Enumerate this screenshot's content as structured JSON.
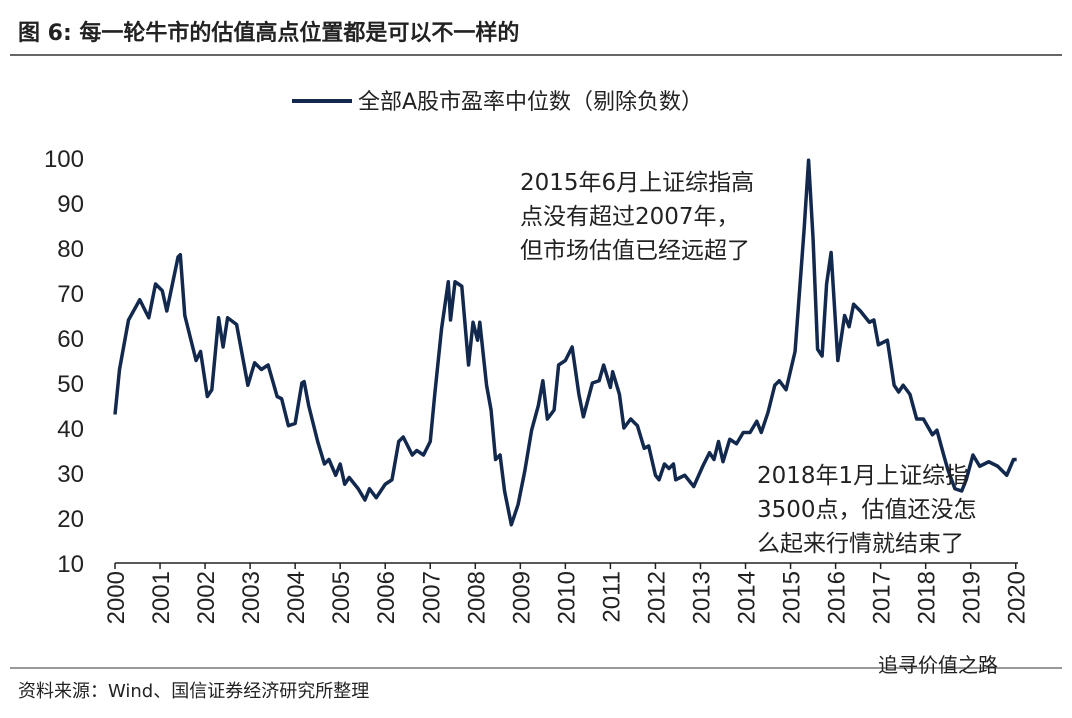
{
  "chart_data": {
    "type": "line",
    "title": "图 6: 每一轮牛市的估值高点位置都是可以不一样的",
    "source": "资料来源：Wind、国信证券经济研究所整理",
    "watermark": "追寻价值之路",
    "annotations": [
      {
        "lines": [
          "2015年6月上证综指高",
          "点没有超过2007年，",
          "但市场估值已经远超了"
        ]
      },
      {
        "lines": [
          "2018年1月上证综指",
          "3500点，估值还没怎",
          "么起来行情就结束了"
        ]
      }
    ],
    "xlim": [
      2000,
      2020.05
    ],
    "xticks": [
      2000,
      2001,
      2002,
      2003,
      2004,
      2005,
      2006,
      2007,
      2008,
      2009,
      2010,
      2011,
      2012,
      2013,
      2014,
      2015,
      2016,
      2017,
      2018,
      2019,
      2020
    ],
    "ylim": [
      10,
      100
    ],
    "yticks": [
      10,
      20,
      30,
      40,
      50,
      60,
      70,
      80,
      90,
      100
    ],
    "x": [
      2000.0,
      2000.1,
      2000.3,
      2000.55,
      2000.75,
      2000.9,
      2001.05,
      2001.15,
      2001.4,
      2001.45,
      2001.55,
      2001.8,
      2001.9,
      2002.05,
      2002.15,
      2002.3,
      2002.4,
      2002.5,
      2002.7,
      2002.95,
      2003.1,
      2003.25,
      2003.4,
      2003.6,
      2003.7,
      2003.85,
      2004.0,
      2004.15,
      2004.2,
      2004.3,
      2004.5,
      2004.65,
      2004.75,
      2004.9,
      2005.0,
      2005.1,
      2005.2,
      2005.4,
      2005.55,
      2005.65,
      2005.8,
      2006.0,
      2006.15,
      2006.3,
      2006.4,
      2006.6,
      2006.7,
      2006.85,
      2007.0,
      2007.1,
      2007.25,
      2007.4,
      2007.45,
      2007.55,
      2007.7,
      2007.85,
      2007.95,
      2008.05,
      2008.1,
      2008.25,
      2008.35,
      2008.45,
      2008.55,
      2008.65,
      2008.8,
      2008.95,
      2009.1,
      2009.25,
      2009.4,
      2009.5,
      2009.6,
      2009.75,
      2009.85,
      2010.0,
      2010.15,
      2010.3,
      2010.4,
      2010.6,
      2010.75,
      2010.85,
      2011.0,
      2011.05,
      2011.2,
      2011.3,
      2011.45,
      2011.6,
      2011.75,
      2011.85,
      2012.0,
      2012.08,
      2012.2,
      2012.3,
      2012.4,
      2012.45,
      2012.65,
      2012.85,
      2013.05,
      2013.2,
      2013.3,
      2013.4,
      2013.5,
      2013.65,
      2013.8,
      2013.95,
      2014.1,
      2014.25,
      2014.35,
      2014.5,
      2014.65,
      2014.75,
      2014.9,
      2015.1,
      2015.2,
      2015.3,
      2015.4,
      2015.5,
      2015.6,
      2015.7,
      2015.8,
      2015.9,
      2016.05,
      2016.2,
      2016.3,
      2016.4,
      2016.55,
      2016.75,
      2016.85,
      2016.95,
      2017.15,
      2017.3,
      2017.4,
      2017.5,
      2017.65,
      2017.8,
      2017.95,
      2018.15,
      2018.25,
      2018.4,
      2018.5,
      2018.65,
      2018.8,
      2018.9,
      2019.05,
      2019.2,
      2019.4,
      2019.6,
      2019.8,
      2019.95,
      2020.02
    ],
    "series": [
      {
        "name": "全部A股市盈率中位数（剔除负数）",
        "color": "#12284c",
        "values": [
          43,
          53,
          64,
          68.5,
          64.5,
          72,
          70.5,
          66,
          78,
          78.5,
          65,
          55,
          57,
          47,
          48.5,
          64.5,
          58,
          64.5,
          63,
          49.5,
          54.5,
          53,
          54,
          47,
          46.5,
          40.5,
          41,
          50,
          50.3,
          45,
          37,
          32,
          33,
          29.5,
          32,
          27.5,
          29,
          26.5,
          24,
          26.5,
          24.5,
          27.5,
          28.5,
          37,
          38,
          34,
          35,
          34,
          37,
          47.5,
          62,
          72.5,
          64,
          72.5,
          71.5,
          54,
          63.5,
          59.5,
          63.5,
          49.5,
          44,
          33,
          34,
          26,
          18.5,
          23,
          30.5,
          39.5,
          45,
          50.5,
          42,
          44,
          54,
          55,
          58,
          47.5,
          42.5,
          50,
          50.5,
          54,
          49,
          52.5,
          47.5,
          40,
          42,
          40.5,
          35.5,
          36,
          29.5,
          28.5,
          32,
          31,
          32,
          28.5,
          29.5,
          27,
          31.5,
          34.5,
          33,
          37,
          32.5,
          37.5,
          36.5,
          39,
          39,
          41.5,
          39,
          43.5,
          49.5,
          50.5,
          48.5,
          57,
          70.5,
          84,
          99.5,
          82,
          57.5,
          56,
          72,
          79,
          55,
          65,
          62.5,
          67.5,
          66,
          63.5,
          64,
          58.5,
          59.5,
          49.5,
          48,
          49.5,
          47.5,
          42,
          42,
          38.5,
          39.5,
          34,
          30.5,
          26.5,
          26,
          28.5,
          34,
          31.5,
          32.5,
          31.5,
          29.5,
          33,
          33
        ]
      }
    ]
  }
}
